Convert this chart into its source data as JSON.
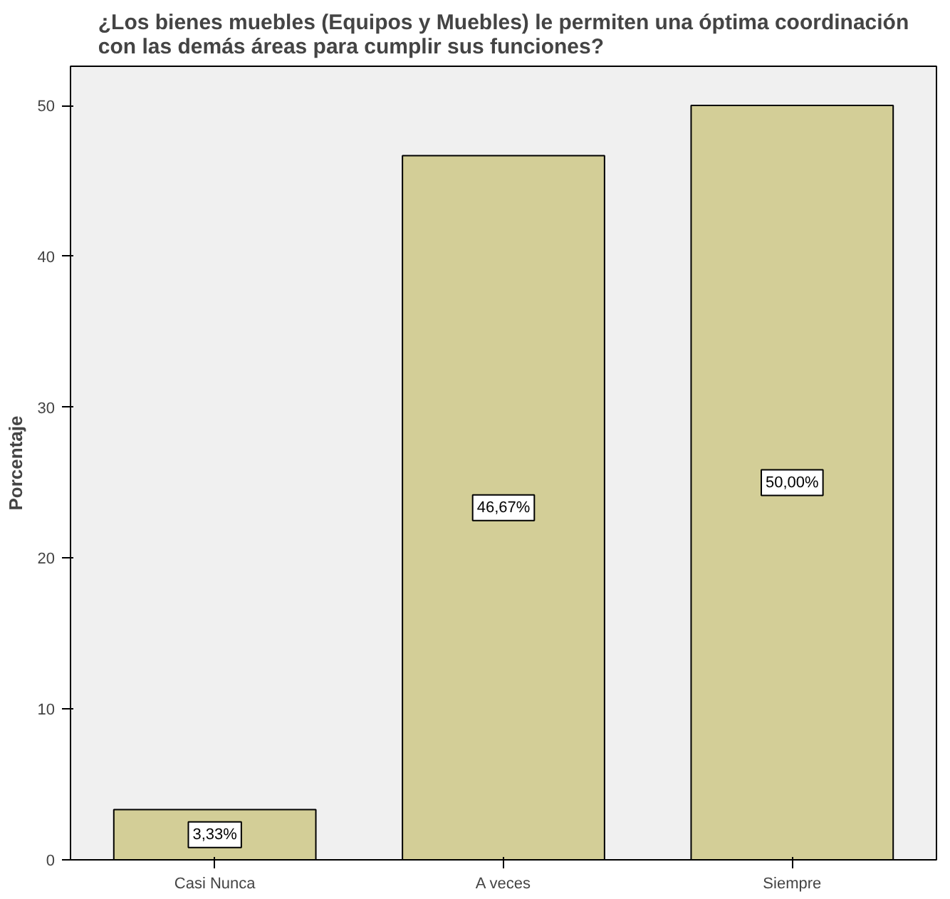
{
  "chart_data": {
    "type": "bar",
    "title": "¿Los bienes muebles (Equipos y Muebles) le permiten una óptima coordinación\ncon las demás áreas para cumplir sus funciones?",
    "ylabel": "Porcentaje",
    "categories": [
      "Casi Nunca",
      "A veces",
      "Siempre"
    ],
    "values": [
      3.33,
      46.67,
      50.0
    ],
    "value_labels": [
      "3,33%",
      "46,67%",
      "50,00%"
    ],
    "color": "#d3ce97",
    "ylim": [
      0,
      52.6
    ],
    "yticks": [
      0,
      10,
      20,
      30,
      40,
      50
    ],
    "grid": false
  }
}
